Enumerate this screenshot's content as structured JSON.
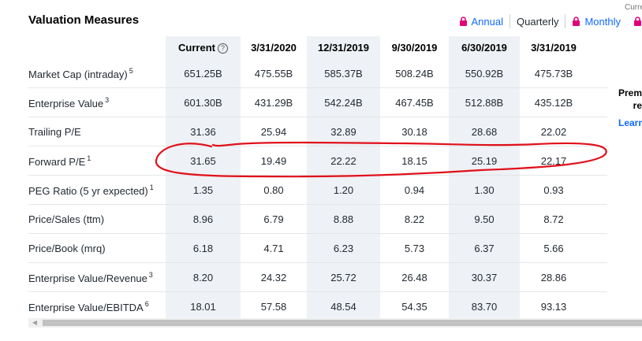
{
  "title": "Valuation Measures",
  "currency_label": "Currency in USD",
  "toggles": [
    {
      "label": "Annual",
      "premium": true
    },
    {
      "label": "Quarterly",
      "premium": false
    },
    {
      "label": "Monthly",
      "premium": true
    },
    {
      "label": "",
      "premium": true
    }
  ],
  "columns": [
    "Current",
    "3/31/2020",
    "12/31/2019",
    "9/30/2019",
    "6/30/2019",
    "3/31/2019"
  ],
  "rows": [
    {
      "label": "Market Cap (intraday)",
      "note": "5",
      "values": [
        "651.25B",
        "475.55B",
        "585.37B",
        "508.24B",
        "550.92B",
        "475.73B"
      ]
    },
    {
      "label": "Enterprise Value",
      "note": "3",
      "values": [
        "601.30B",
        "431.29B",
        "542.24B",
        "467.45B",
        "512.88B",
        "435.12B"
      ]
    },
    {
      "label": "Trailing P/E",
      "note": "",
      "values": [
        "31.36",
        "25.94",
        "32.89",
        "30.18",
        "28.68",
        "22.02"
      ]
    },
    {
      "label": "Forward P/E",
      "note": "1",
      "values": [
        "31.65",
        "19.49",
        "22.22",
        "18.15",
        "25.19",
        "22.17"
      ]
    },
    {
      "label": "PEG Ratio (5 yr expected)",
      "note": "1",
      "values": [
        "1.35",
        "0.80",
        "1.20",
        "0.94",
        "1.30",
        "0.93"
      ]
    },
    {
      "label": "Price/Sales (ttm)",
      "note": "",
      "values": [
        "8.96",
        "6.79",
        "8.88",
        "8.22",
        "9.50",
        "8.72"
      ]
    },
    {
      "label": "Price/Book (mrq)",
      "note": "",
      "values": [
        "6.18",
        "4.71",
        "6.23",
        "5.73",
        "6.37",
        "5.66"
      ]
    },
    {
      "label": "Enterprise Value/Revenue",
      "note": "3",
      "values": [
        "8.20",
        "24.32",
        "25.72",
        "26.48",
        "30.37",
        "28.86"
      ]
    },
    {
      "label": "Enterprise Value/EBITDA",
      "note": "6",
      "values": [
        "18.01",
        "57.58",
        "48.54",
        "54.35",
        "83.70",
        "93.13"
      ]
    }
  ],
  "promo": {
    "line1": "Premium",
    "line2": "re",
    "link": "Learn"
  },
  "colors": {
    "accent": "#0f69ff",
    "premium_lock": "#e0007a",
    "annotation": "#e0101a",
    "highlight_col": "#eef1f5"
  }
}
